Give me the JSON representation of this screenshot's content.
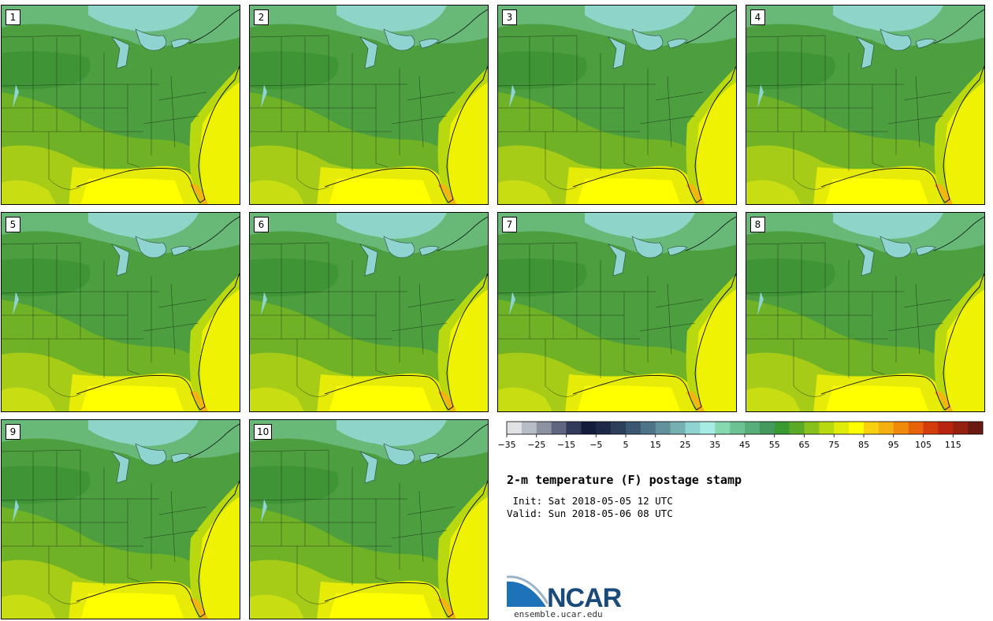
{
  "figure": {
    "title": "2-m temperature (F) postage stamp",
    "init": " Init: Sat 2018-05-05 12 UTC",
    "valid": "Valid: Sun 2018-05-06 08 UTC",
    "logo_text": "NCAR",
    "site": "ensemble.ucar.edu"
  },
  "members": [
    "1",
    "2",
    "3",
    "4",
    "5",
    "6",
    "7",
    "8",
    "9",
    "10"
  ],
  "colorbar": {
    "ticks": [
      "−35",
      "−25",
      "−15",
      "−5",
      "5",
      "15",
      "25",
      "35",
      "45",
      "55",
      "65",
      "75",
      "85",
      "95",
      "105",
      "115"
    ],
    "colors": [
      "#e0e2e6",
      "#b8bcc6",
      "#8c92a2",
      "#5f6780",
      "#323a5c",
      "#141c3c",
      "#1e2848",
      "#2c3f5a",
      "#3a5670",
      "#4e7488",
      "#62929c",
      "#76b0b2",
      "#8fd4d0",
      "#a6ece4",
      "#86d8b0",
      "#6cc292",
      "#58ae78",
      "#449a5c",
      "#3a9a32",
      "#5aaa28",
      "#88c01c",
      "#b8d810",
      "#e0ec08",
      "#ffff00",
      "#f8d010",
      "#f4b00e",
      "#f08a0a",
      "#e8620a",
      "#d43c0c",
      "#b82410",
      "#962010",
      "#6a1a10"
    ]
  }
}
